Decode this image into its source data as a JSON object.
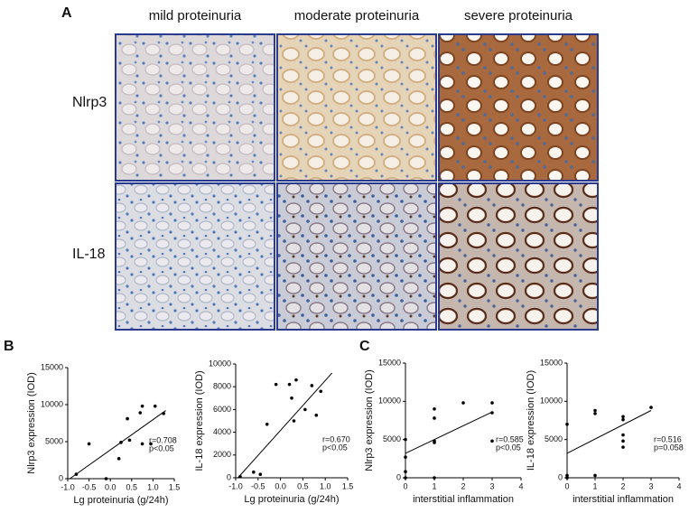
{
  "panel_a": {
    "label": "A",
    "columns": [
      "mild proteinuria",
      "moderate proteinuria",
      "severe proteinuria"
    ],
    "rows": [
      "Nlrp3",
      "IL-18"
    ]
  },
  "panel_b": "B",
  "panel_c": "C",
  "chart_data": [
    {
      "type": "scatter",
      "xlabel": "Lg proteinuria (g/24h)",
      "ylabel": "Nlrp3 expression (IOD)",
      "x": [
        -0.8,
        -0.5,
        -0.1,
        0.2,
        0.25,
        0.4,
        0.45,
        0.7,
        0.75,
        0.75,
        0.95,
        1.05,
        1.25
      ],
      "values": [
        600,
        4700,
        0,
        2700,
        4900,
        8100,
        5200,
        8900,
        9800,
        4700,
        4700,
        9800,
        8800
      ],
      "trendline": {
        "x": [
          -0.95,
          1.3
        ],
        "y": [
          0,
          9200
        ]
      },
      "annotations": [
        "r=0.708",
        "p<0.05"
      ],
      "xlim": [
        -1.0,
        1.5
      ],
      "xticks": [
        {
          "value": -1.0,
          "label": "-1.0"
        },
        -0.5,
        {
          "value": 0,
          "label": "0.0"
        },
        0.5,
        {
          "value": 1,
          "label": "1.0"
        },
        1.5
      ],
      "ylim": [
        0,
        15000
      ],
      "yticks": [
        0,
        5000,
        10000,
        15000
      ],
      "color": "#000000"
    },
    {
      "type": "scatter",
      "xlabel": "Lg proteinuria (g/24h)",
      "ylabel": "IL-18 expression (IOD)",
      "x": [
        -0.9,
        -0.6,
        -0.45,
        -0.3,
        -0.1,
        0.2,
        0.25,
        0.3,
        0.35,
        0.55,
        0.7,
        0.8,
        0.9
      ],
      "values": [
        100,
        500,
        300,
        4700,
        8200,
        8200,
        7000,
        5000,
        8600,
        6000,
        8100,
        5500,
        7600
      ],
      "trendline": {
        "x": [
          -0.95,
          1.15
        ],
        "y": [
          0,
          9200
        ]
      },
      "annotations": [
        "r=0.670",
        "p<0.05"
      ],
      "xlim": [
        -1.0,
        1.5
      ],
      "xticks": [
        {
          "value": -1.0,
          "label": "-1.0"
        },
        -0.5,
        {
          "value": 0,
          "label": "0.0"
        },
        0.5,
        {
          "value": 1,
          "label": "1.0"
        },
        1.5
      ],
      "ylim": [
        0,
        10000
      ],
      "yticks": [
        0,
        2000,
        4000,
        6000,
        8000,
        10000
      ],
      "color": "#000000"
    },
    {
      "type": "scatter",
      "xlabel": "interstitial inflammation",
      "ylabel": "Nlrp3 expression (IOD)",
      "x": [
        0,
        0,
        0,
        0,
        1,
        1,
        1,
        1,
        1,
        2,
        3,
        3,
        3
      ],
      "values": [
        0,
        800,
        2700,
        5000,
        0,
        4800,
        4600,
        7800,
        9000,
        9800,
        9800,
        8500,
        4800
      ],
      "trendline": {
        "x": [
          0,
          3
        ],
        "y": [
          3200,
          8600
        ]
      },
      "annotations": [
        "r=0.585",
        "p<0.05"
      ],
      "xlim": [
        0,
        4
      ],
      "xticks": [
        0,
        1,
        2,
        3,
        4
      ],
      "ylim": [
        0,
        15000
      ],
      "yticks": [
        0,
        5000,
        10000,
        15000
      ],
      "color": "#000000"
    },
    {
      "type": "scatter",
      "xlabel": "interstitial inflammation",
      "ylabel": "IL-18 expression (IOD)",
      "x": [
        0,
        0,
        0,
        1,
        1,
        1,
        2,
        2,
        2,
        2,
        2,
        3
      ],
      "values": [
        0,
        300,
        7000,
        8800,
        8400,
        300,
        8000,
        7600,
        5600,
        4000,
        4800,
        9200
      ],
      "trendline": {
        "x": [
          0,
          3
        ],
        "y": [
          3200,
          8800
        ]
      },
      "annotations": [
        "r=0.516",
        "p=0.058"
      ],
      "xlim": [
        0,
        4
      ],
      "xticks": [
        0,
        1,
        2,
        3,
        4
      ],
      "ylim": [
        0,
        15000
      ],
      "yticks": [
        0,
        5000,
        10000,
        15000
      ],
      "color": "#000000"
    }
  ]
}
